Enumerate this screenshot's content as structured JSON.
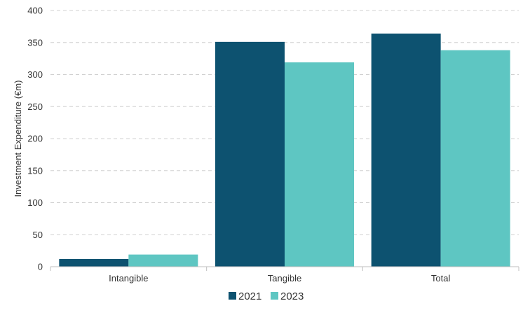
{
  "chart_data": {
    "type": "bar",
    "categories": [
      "Intangible",
      "Tangible",
      "Total"
    ],
    "series": [
      {
        "name": "2021",
        "values": [
          12,
          351,
          364
        ],
        "color": "#0d5270"
      },
      {
        "name": "2023",
        "values": [
          19,
          319,
          338
        ],
        "color": "#5ec6c2"
      }
    ],
    "xlabel": "",
    "ylabel": "Investment Expenditure (€m)",
    "ylim": [
      0,
      400
    ],
    "yticks": [
      0,
      50,
      100,
      150,
      200,
      250,
      300,
      350,
      400
    ],
    "grid": true,
    "legend_position": "bottom-center"
  }
}
